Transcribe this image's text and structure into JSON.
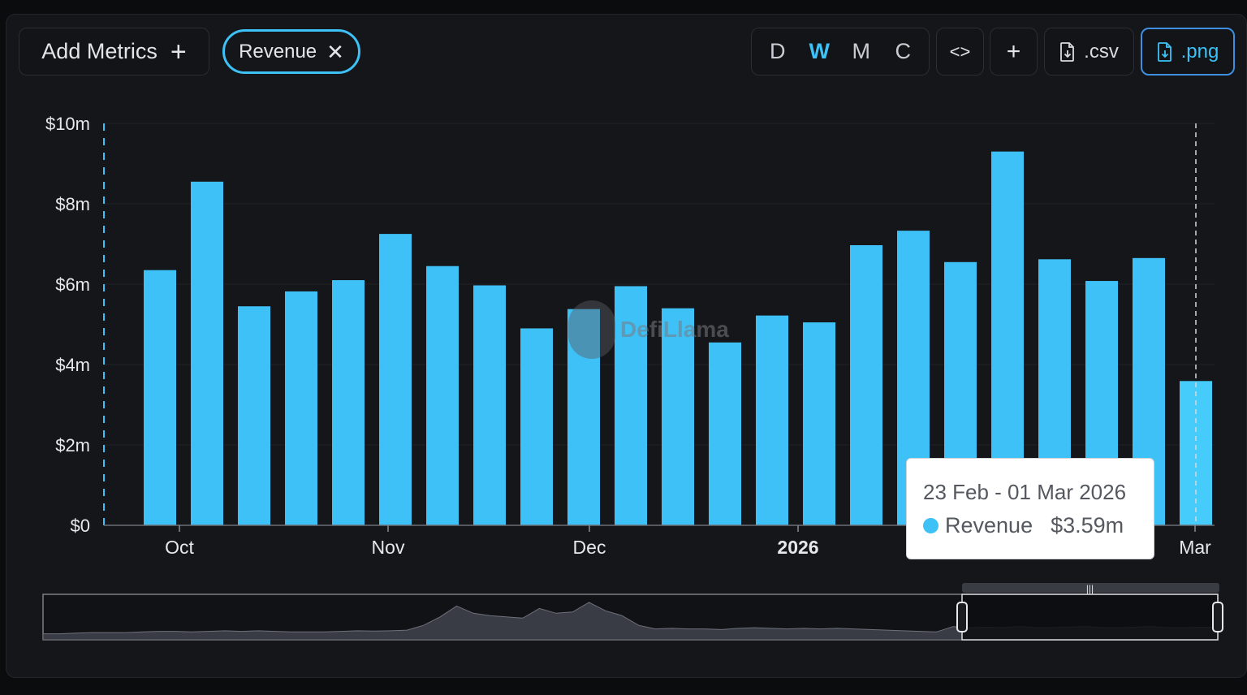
{
  "toolbar": {
    "add_metrics_label": "Add Metrics",
    "add_metrics_icon": "plus-icon",
    "metric_chip_label": "Revenue",
    "metric_chip_icon": "close-icon",
    "intervals": [
      "D",
      "W",
      "M",
      "C"
    ],
    "active_interval": "W",
    "embed_label": "<>",
    "add_chart_label": "+",
    "csv_label": ".csv",
    "png_label": ".png",
    "accent_color": "#3ec1f6"
  },
  "watermark": {
    "text": "DefiLlama"
  },
  "tooltip": {
    "date": "23 Feb - 01 Mar 2026",
    "series_name": "Revenue",
    "value": "$3.59m"
  },
  "chart_data": {
    "type": "bar",
    "series": [
      {
        "name": "Revenue",
        "color": "#3ec1f6",
        "values": [
          6.35,
          8.55,
          5.45,
          5.82,
          6.1,
          7.25,
          6.45,
          5.97,
          4.9,
          5.38,
          5.95,
          5.4,
          4.55,
          5.22,
          5.05,
          6.97,
          7.33,
          6.55,
          9.3,
          6.62,
          6.08,
          6.65,
          3.59
        ]
      }
    ],
    "x_ticks": [
      "Oct",
      "Nov",
      "Dec",
      "2026",
      "Mar"
    ],
    "x_tick_bold": [
      "2026"
    ],
    "y_ticks": [
      "$0",
      "$2m",
      "$4m",
      "$6m",
      "$8m",
      "$10m"
    ],
    "ylim": [
      0,
      10
    ],
    "unit": "$m",
    "highlighted_bar_index": 22,
    "brush_overview_values": [
      0.5,
      0.5,
      0.55,
      0.6,
      0.6,
      0.6,
      0.65,
      0.7,
      0.7,
      0.65,
      0.7,
      0.75,
      0.7,
      0.75,
      0.7,
      0.65,
      0.65,
      0.65,
      0.7,
      0.75,
      0.72,
      0.75,
      0.8,
      1.2,
      1.9,
      2.8,
      2.2,
      2.0,
      1.9,
      1.8,
      2.6,
      2.2,
      2.3,
      3.1,
      2.4,
      2.0,
      1.2,
      0.9,
      0.95,
      0.9,
      0.9,
      0.85,
      0.95,
      1.0,
      0.95,
      0.9,
      0.95,
      0.9,
      0.95,
      0.9,
      0.85,
      0.8,
      0.75,
      0.7,
      0.65,
      1.1,
      1.0,
      1.05,
      1.0,
      1.1,
      1.0,
      1.0,
      1.05,
      1.1,
      1.0,
      1.0,
      1.05,
      1.1,
      1.0,
      1.0,
      1.05,
      1.0
    ]
  }
}
